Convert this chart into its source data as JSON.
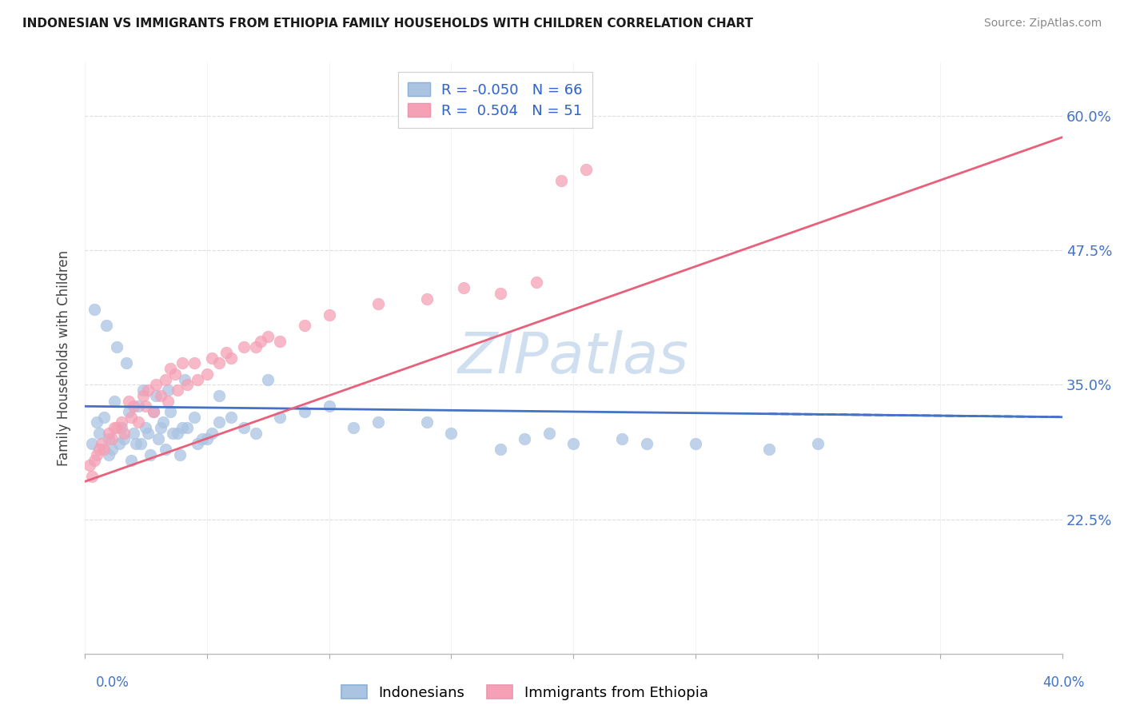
{
  "title": "INDONESIAN VS IMMIGRANTS FROM ETHIOPIA FAMILY HOUSEHOLDS WITH CHILDREN CORRELATION CHART",
  "source": "Source: ZipAtlas.com",
  "ylabel_label": "Family Households with Children",
  "legend_labels": [
    "Indonesians",
    "Immigrants from Ethiopia"
  ],
  "blue_color": "#aac4e2",
  "pink_color": "#f5a0b5",
  "blue_line_color": "#4472c4",
  "pink_line_color": "#e8607a",
  "watermark_color": "#d0dff0",
  "xmin": 0.0,
  "xmax": 40.0,
  "ymin": 10.0,
  "ymax": 65.0,
  "ytick_positions": [
    22.5,
    35.0,
    47.5,
    60.0
  ],
  "xtick_positions": [
    0.0,
    5.0,
    10.0,
    15.0,
    20.0,
    25.0,
    30.0,
    35.0,
    40.0
  ],
  "indo_R": -0.05,
  "indo_N": 66,
  "eth_R": 0.504,
  "eth_N": 51,
  "indonesian_x": [
    0.5,
    0.8,
    1.0,
    1.2,
    1.5,
    1.8,
    2.0,
    2.2,
    2.5,
    2.8,
    3.0,
    3.2,
    3.5,
    3.8,
    4.0,
    4.5,
    5.0,
    5.5,
    6.0,
    7.0,
    0.3,
    0.6,
    1.1,
    1.6,
    2.1,
    2.6,
    3.1,
    3.6,
    4.2,
    4.8,
    1.0,
    1.4,
    1.9,
    2.3,
    2.7,
    3.3,
    3.9,
    4.6,
    5.2,
    6.5,
    0.4,
    0.9,
    1.3,
    1.7,
    2.4,
    2.9,
    3.4,
    4.1,
    5.5,
    7.5,
    8.0,
    10.0,
    12.0,
    15.0,
    18.0,
    20.0,
    22.0,
    25.0,
    28.0,
    30.0,
    9.0,
    11.0,
    14.0,
    17.0,
    19.0,
    23.0
  ],
  "indonesian_y": [
    31.5,
    32.0,
    30.0,
    33.5,
    31.0,
    32.5,
    30.5,
    33.0,
    31.0,
    32.5,
    30.0,
    31.5,
    32.5,
    30.5,
    31.0,
    32.0,
    30.0,
    31.5,
    32.0,
    30.5,
    29.5,
    30.5,
    29.0,
    30.0,
    29.5,
    30.5,
    31.0,
    30.5,
    31.0,
    30.0,
    28.5,
    29.5,
    28.0,
    29.5,
    28.5,
    29.0,
    28.5,
    29.5,
    30.5,
    31.0,
    42.0,
    40.5,
    38.5,
    37.0,
    34.5,
    34.0,
    34.5,
    35.5,
    34.0,
    35.5,
    32.0,
    33.0,
    31.5,
    30.5,
    30.0,
    29.5,
    30.0,
    29.5,
    29.0,
    29.5,
    32.5,
    31.0,
    31.5,
    29.0,
    30.5,
    29.5
  ],
  "ethiopia_x": [
    0.2,
    0.5,
    0.8,
    1.0,
    1.3,
    1.6,
    1.9,
    2.2,
    2.5,
    2.8,
    3.1,
    3.4,
    3.8,
    4.2,
    4.6,
    5.0,
    5.5,
    6.0,
    7.0,
    8.0,
    0.4,
    0.7,
    1.1,
    1.5,
    2.0,
    2.4,
    2.9,
    3.3,
    3.7,
    4.5,
    5.2,
    6.5,
    7.5,
    9.0,
    10.0,
    12.0,
    14.0,
    15.5,
    17.0,
    18.5,
    0.3,
    0.6,
    1.2,
    1.8,
    2.6,
    3.5,
    4.0,
    5.8,
    7.2,
    19.5,
    20.5
  ],
  "ethiopia_y": [
    27.5,
    28.5,
    29.0,
    30.5,
    31.0,
    30.5,
    32.0,
    31.5,
    33.0,
    32.5,
    34.0,
    33.5,
    34.5,
    35.0,
    35.5,
    36.0,
    37.0,
    37.5,
    38.5,
    39.0,
    28.0,
    29.5,
    30.0,
    31.5,
    33.0,
    34.0,
    35.0,
    35.5,
    36.0,
    37.0,
    37.5,
    38.5,
    39.5,
    40.5,
    41.5,
    42.5,
    43.0,
    44.0,
    43.5,
    44.5,
    26.5,
    29.0,
    31.0,
    33.5,
    34.5,
    36.5,
    37.0,
    38.0,
    39.0,
    54.0,
    55.0
  ]
}
